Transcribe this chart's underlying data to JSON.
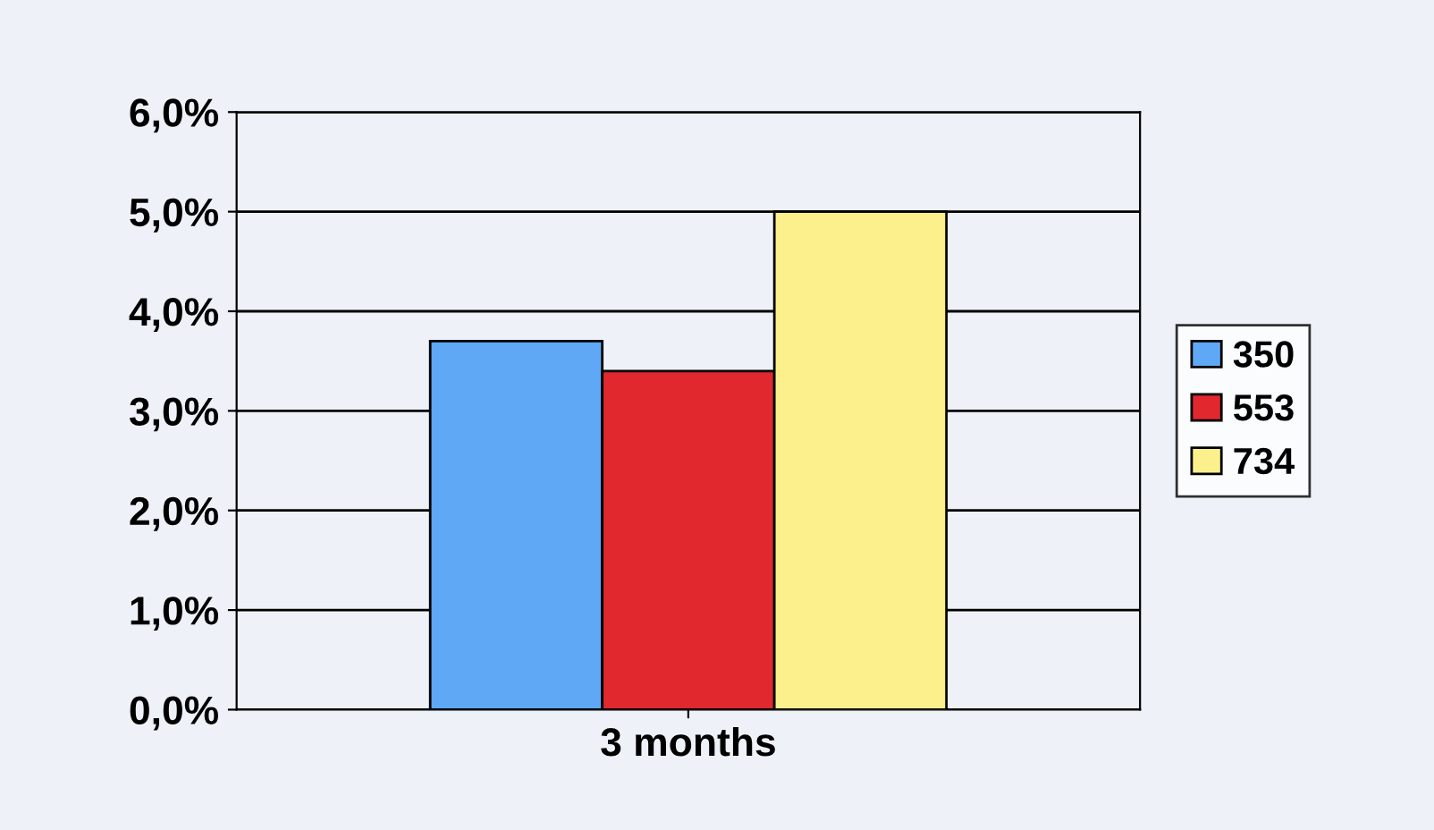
{
  "chart_data": {
    "type": "bar",
    "categories": [
      "3 months"
    ],
    "series": [
      {
        "name": "350",
        "color": "#5fa8f5",
        "values": [
          3.7
        ]
      },
      {
        "name": "553",
        "color": "#e0282e",
        "values": [
          3.4
        ]
      },
      {
        "name": "734",
        "color": "#fbf08c",
        "values": [
          5.0
        ]
      }
    ],
    "ylim": [
      0,
      6
    ],
    "yticks": [
      {
        "value": 0,
        "label": "0,0%"
      },
      {
        "value": 1,
        "label": "1,0%"
      },
      {
        "value": 2,
        "label": "2,0%"
      },
      {
        "value": 3,
        "label": "3,0%"
      },
      {
        "value": 4,
        "label": "4,0%"
      },
      {
        "value": 5,
        "label": "5,0%"
      },
      {
        "value": 6,
        "label": "6,0%"
      }
    ],
    "grid": "y",
    "legend": "right"
  }
}
